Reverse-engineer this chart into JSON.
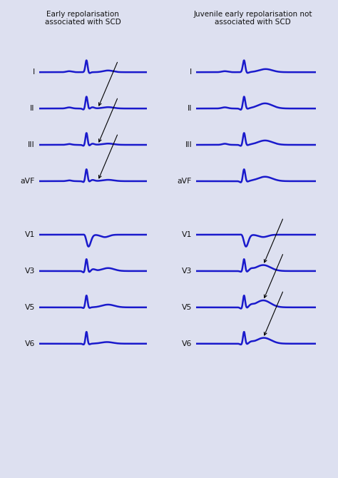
{
  "title_left": "Early repolarisation\nassociated with SCD",
  "title_right": "Juvenile early repolarisation not\nassociated with SCD",
  "bg_color": "#dde0f0",
  "ecg_color": "#1a1acc",
  "text_color": "#222222",
  "figsize": [
    4.74,
    6.7
  ],
  "dpi": 100,
  "leads": [
    "I",
    "II",
    "III",
    "aVF",
    "V1",
    "V3",
    "V5",
    "V6"
  ]
}
